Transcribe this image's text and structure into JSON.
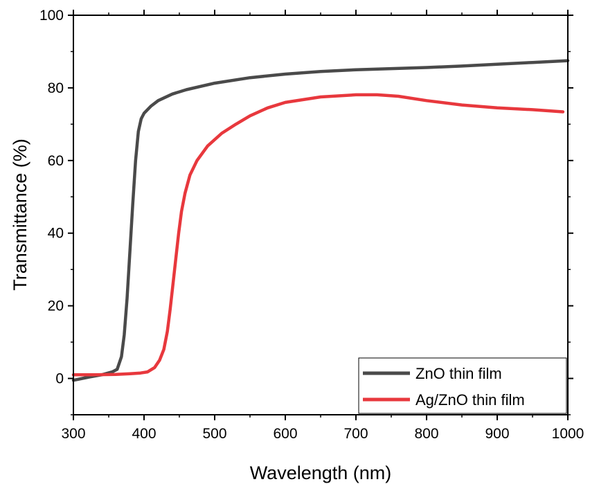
{
  "chart_data": {
    "type": "line",
    "title": "",
    "xlabel": "Wavelength (nm)",
    "ylabel": "Transmittance (%)",
    "xlim": [
      300,
      1000
    ],
    "ylim": [
      -10,
      100
    ],
    "x_ticks": [
      300,
      400,
      500,
      600,
      700,
      800,
      900,
      1000
    ],
    "y_ticks": [
      0,
      20,
      40,
      60,
      80,
      100
    ],
    "x_tick_labels": [
      "300",
      "400",
      "500",
      "600",
      "700",
      "800",
      "900",
      "1000"
    ],
    "y_tick_labels": [
      "0",
      "20",
      "40",
      "60",
      "80",
      "100"
    ],
    "grid": false,
    "legend_position": "bottom-right",
    "series": [
      {
        "name": "ZnO thin film",
        "color": "#4a4a4a",
        "points": [
          [
            300,
            -0.5
          ],
          [
            320,
            0.3
          ],
          [
            340,
            1.0
          ],
          [
            355,
            1.8
          ],
          [
            362,
            2.5
          ],
          [
            368,
            6
          ],
          [
            372,
            12
          ],
          [
            376,
            22
          ],
          [
            380,
            35
          ],
          [
            384,
            48
          ],
          [
            388,
            60
          ],
          [
            392,
            68
          ],
          [
            396,
            71.5
          ],
          [
            400,
            73
          ],
          [
            410,
            75
          ],
          [
            420,
            76.5
          ],
          [
            440,
            78.3
          ],
          [
            460,
            79.5
          ],
          [
            500,
            81.3
          ],
          [
            550,
            82.8
          ],
          [
            600,
            83.8
          ],
          [
            650,
            84.5
          ],
          [
            700,
            85.0
          ],
          [
            750,
            85.3
          ],
          [
            800,
            85.6
          ],
          [
            850,
            86.0
          ],
          [
            900,
            86.5
          ],
          [
            950,
            87.0
          ],
          [
            1000,
            87.5
          ]
        ]
      },
      {
        "name": "Ag/ZnO thin film",
        "color": "#e8383d",
        "points": [
          [
            300,
            1.0
          ],
          [
            330,
            1.0
          ],
          [
            360,
            1.1
          ],
          [
            380,
            1.3
          ],
          [
            395,
            1.5
          ],
          [
            405,
            1.8
          ],
          [
            415,
            3
          ],
          [
            422,
            5
          ],
          [
            428,
            8
          ],
          [
            433,
            13
          ],
          [
            437,
            19
          ],
          [
            441,
            26
          ],
          [
            445,
            33
          ],
          [
            449,
            40
          ],
          [
            453,
            46
          ],
          [
            458,
            51
          ],
          [
            465,
            56
          ],
          [
            475,
            60
          ],
          [
            490,
            64
          ],
          [
            510,
            67.5
          ],
          [
            530,
            70
          ],
          [
            550,
            72.3
          ],
          [
            575,
            74.5
          ],
          [
            600,
            76
          ],
          [
            650,
            77.5
          ],
          [
            700,
            78.1
          ],
          [
            730,
            78.1
          ],
          [
            760,
            77.7
          ],
          [
            800,
            76.5
          ],
          [
            850,
            75.3
          ],
          [
            900,
            74.5
          ],
          [
            950,
            74.0
          ],
          [
            993,
            73.4
          ]
        ]
      }
    ]
  }
}
